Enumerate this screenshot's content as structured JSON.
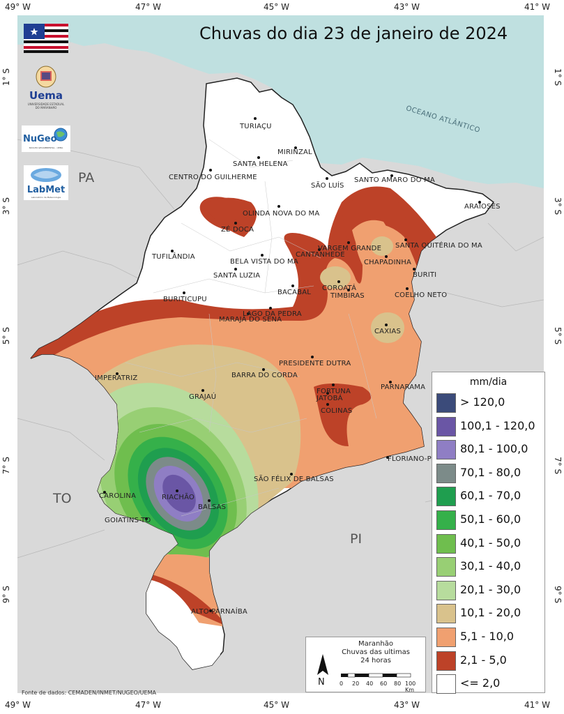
{
  "title": "Chuvas do dia 23 de janeiro de 2024",
  "coordinates": {
    "longitudes": [
      "49° W",
      "47° W",
      "45° W",
      "43° W",
      "41° W"
    ],
    "latitudes": [
      "1° S",
      "3° S",
      "5° S",
      "7° S",
      "9° S"
    ]
  },
  "regions": {
    "pa": "PA",
    "to": "TO",
    "pi": "PI",
    "ocean": "OCEANO ATLÂNTICO"
  },
  "cities": [
    {
      "name": "TURIAÇU"
    },
    {
      "name": "MIRINZAL"
    },
    {
      "name": "SANTA HELENA"
    },
    {
      "name": "CENTRO DO GUILHERME"
    },
    {
      "name": "SÃO LUÍS"
    },
    {
      "name": "SANTO AMARO DO MA"
    },
    {
      "name": "ARAIOSES"
    },
    {
      "name": "OLINDA NOVA DO MA"
    },
    {
      "name": "ZÉ DOCA"
    },
    {
      "name": "VARGEM GRANDE"
    },
    {
      "name": "SANTA QUITÉRIA DO MA"
    },
    {
      "name": "CANTANHEDE"
    },
    {
      "name": "TUFILÂNDIA"
    },
    {
      "name": "BELA VISTA DO MA"
    },
    {
      "name": "CHAPADINHA"
    },
    {
      "name": "BURITI"
    },
    {
      "name": "SANTA LUZIA"
    },
    {
      "name": "COROATÁ"
    },
    {
      "name": "TIMBIRAS"
    },
    {
      "name": "COELHO NETO"
    },
    {
      "name": "BACABAL"
    },
    {
      "name": "BURITICUPU"
    },
    {
      "name": "LAGO DA PEDRA"
    },
    {
      "name": "MARAJÁ DO SENA"
    },
    {
      "name": "CAXIAS"
    },
    {
      "name": "PRESIDENTE DUTRA"
    },
    {
      "name": "IMPERATRIZ"
    },
    {
      "name": "BARRA DO CORDA"
    },
    {
      "name": "FORTUNA"
    },
    {
      "name": "JATOBÁ"
    },
    {
      "name": "PARNARAMA"
    },
    {
      "name": "GRAJAÚ"
    },
    {
      "name": "COLINAS"
    },
    {
      "name": "FLORIANO-PI"
    },
    {
      "name": "SÃO FÉLIX DE BALSAS"
    },
    {
      "name": "CAROLINA"
    },
    {
      "name": "RIACHÃO"
    },
    {
      "name": "BALSAS"
    },
    {
      "name": "GOIATINS-TO"
    },
    {
      "name": "ALTO PARNAÍBA"
    }
  ],
  "legend": {
    "title": "mm/dia",
    "items": [
      {
        "label": "> 120,0",
        "color": "#3b4b7a"
      },
      {
        "label": "100,1 - 120,0",
        "color": "#6a56a5"
      },
      {
        "label": "80,1 - 100,0",
        "color": "#8f7ec4"
      },
      {
        "label": "70,1 - 80,0",
        "color": "#7c8b89"
      },
      {
        "label": "60,1 - 70,0",
        "color": "#1f9e4f"
      },
      {
        "label": "50,1 - 60,0",
        "color": "#35b04a"
      },
      {
        "label": "40,1 - 50,0",
        "color": "#6fbe4e"
      },
      {
        "label": "30,1 - 40,0",
        "color": "#98cf74"
      },
      {
        "label": "20,1 - 30,0",
        "color": "#b7dc9d"
      },
      {
        "label": "10,1 - 20,0",
        "color": "#d9c28c"
      },
      {
        "label": "5,1 - 10,0",
        "color": "#f0a070"
      },
      {
        "label": "2,1 - 5,0",
        "color": "#bd4228"
      },
      {
        "label": "<= 2,0",
        "color": "#ffffff"
      }
    ]
  },
  "infobox": {
    "line1": "Maranhão",
    "line2": "Chuvas das ultimas",
    "line3": "24 horas",
    "north": "N",
    "scale_labels": [
      "0",
      "20",
      "40",
      "60",
      "80",
      "100 Km"
    ]
  },
  "logos": {
    "uema": "Uema",
    "uema_sub1": "UNIVERSIDADE ESTADUAL",
    "uema_sub2": "DO MARANHÃO",
    "nugeo": "NuGeo",
    "nugeo_sub": "NÚCLEO GEOAMBIENTAL - UEMA",
    "labmet": "LabMet",
    "labmet_sub": "Laboratório de Meteorologia"
  },
  "source": "Fonte de dados: CEMADEN/INMET/NUGEO/UEMA",
  "colors": {
    "ocean": "#bfe0e0",
    "neighbor_land": "#d9d9d9",
    "state_no_rain": "#ffffff"
  }
}
